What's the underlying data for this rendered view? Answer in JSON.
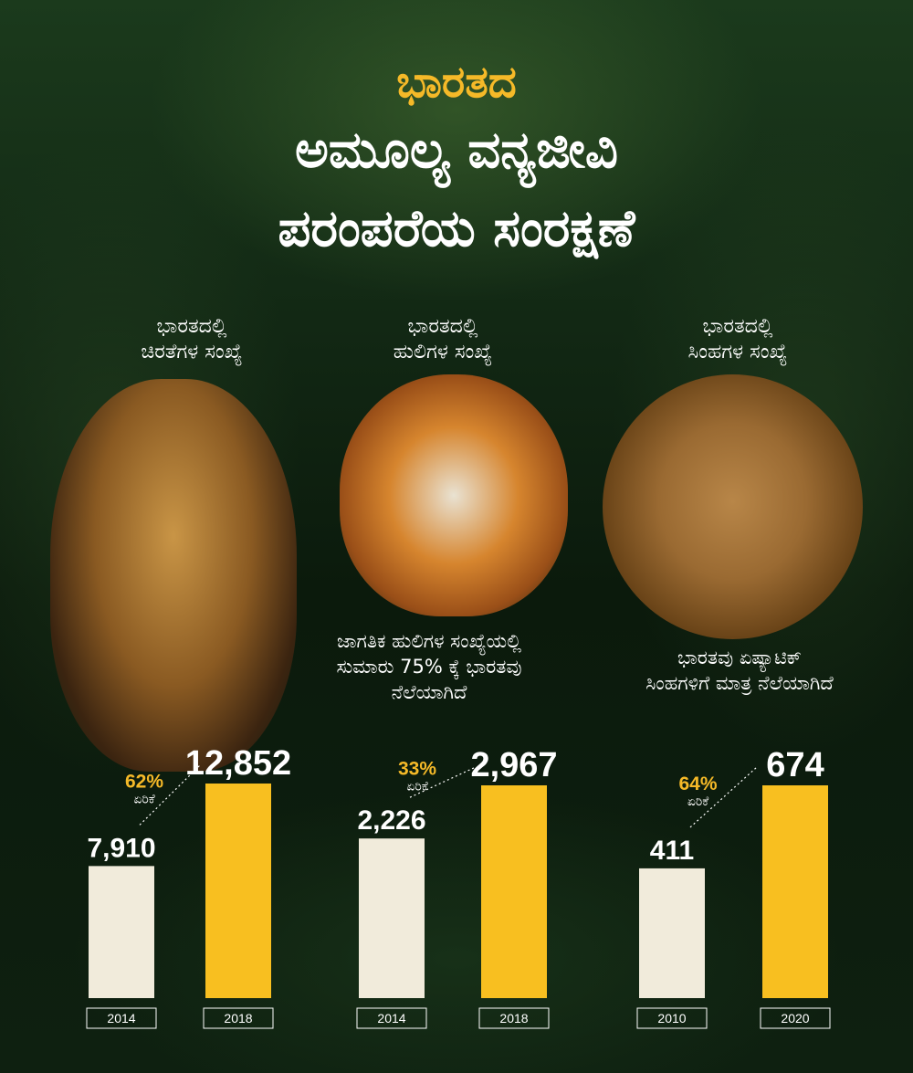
{
  "title": {
    "line1": "ಭಾರತದ",
    "line2": "ಅಮೂಲ್ಯ ವನ್ಯಜೀವಿ",
    "line3": "ಪರಂಪರೆಯ  ಸಂರಕ್ಷಣೆ"
  },
  "captions": {
    "leopard": [
      "ಭಾರತದಲ್ಲಿ",
      "ಚಿರತೆಗಳ ಸಂಖ್ಯೆ"
    ],
    "tiger": [
      "ಭಾರತದಲ್ಲಿ",
      "ಹುಲಿಗಳ ಸಂಖ್ಯೆ"
    ],
    "lion": [
      "ಭಾರತದಲ್ಲಿ",
      "ಸಿಂಹಗಳ ಸಂಖ್ಯೆ"
    ]
  },
  "facts": {
    "tiger": [
      "ಜಾಗತಿಕ ಹುಲಿಗಳ ಸಂಖ್ಯೆಯಲ್ಲಿ",
      "ಸುಮಾರು 75% ಕ್ಕೆ  ಭಾರತವು",
      "ನೆಲೆಯಾಗಿದೆ"
    ],
    "lion": [
      "ಭಾರತವು ಏಷ್ಯಾಟಿಕ್",
      "ಸಿಂಹಗಳಿಗೆ ಮಾತ್ರ ನೆಲೆಯಾಗಿದೆ"
    ]
  },
  "colors": {
    "accent": "#f5b928",
    "bar_old": "#f1ebdb",
    "bar_new": "#f8bf20"
  },
  "chart_data": [
    {
      "type": "bar",
      "series_group": "leopard",
      "categories": [
        "2014",
        "2018"
      ],
      "values": [
        7910,
        12852
      ],
      "labels": [
        "7,910",
        "12,852"
      ],
      "increase_pct": "62%",
      "increase_label": "ಏರಿಕೆ"
    },
    {
      "type": "bar",
      "series_group": "tiger",
      "categories": [
        "2014",
        "2018"
      ],
      "values": [
        2226,
        2967
      ],
      "labels": [
        "2,226",
        "2,967"
      ],
      "increase_pct": "33%",
      "increase_label": "ಏರಿಕೆ"
    },
    {
      "type": "bar",
      "series_group": "lion",
      "categories": [
        "2010",
        "2020"
      ],
      "values": [
        411,
        674
      ],
      "labels": [
        "411",
        "674"
      ],
      "increase_pct": "64%",
      "increase_label": "ಏರಿಕೆ"
    }
  ]
}
